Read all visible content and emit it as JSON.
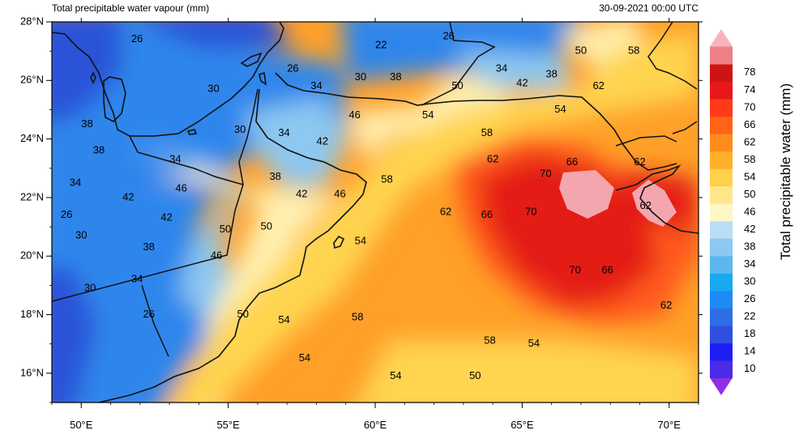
{
  "header": {
    "title": "Total precipitable water vapour (mm)",
    "datetime": "30-09-2021 00:00 UTC"
  },
  "map": {
    "lon_range": [
      49,
      71
    ],
    "lat_range": [
      15,
      28
    ],
    "x_ticks": [
      "50°E",
      "55°E",
      "60°E",
      "65°E",
      "70°E"
    ],
    "y_ticks": [
      "16°N",
      "18°N",
      "20°N",
      "22°N",
      "24°N",
      "26°N",
      "28°N"
    ],
    "contour_labels": [
      {
        "text": "26",
        "lon": 51.9,
        "lat": 27.4
      },
      {
        "text": "22",
        "lon": 60.2,
        "lat": 27.2
      },
      {
        "text": "26",
        "lon": 62.5,
        "lat": 27.5
      },
      {
        "text": "50",
        "lon": 67.0,
        "lat": 27.0
      },
      {
        "text": "58",
        "lon": 68.8,
        "lat": 27.0
      },
      {
        "text": "26",
        "lon": 57.2,
        "lat": 26.4
      },
      {
        "text": "30",
        "lon": 54.5,
        "lat": 25.7
      },
      {
        "text": "34",
        "lon": 58.0,
        "lat": 25.8
      },
      {
        "text": "30",
        "lon": 59.5,
        "lat": 26.1
      },
      {
        "text": "38",
        "lon": 60.7,
        "lat": 26.1
      },
      {
        "text": "50",
        "lon": 62.8,
        "lat": 25.8
      },
      {
        "text": "34",
        "lon": 64.3,
        "lat": 26.4
      },
      {
        "text": "42",
        "lon": 65.0,
        "lat": 25.9
      },
      {
        "text": "38",
        "lon": 66.0,
        "lat": 26.2
      },
      {
        "text": "62",
        "lon": 67.6,
        "lat": 25.8
      },
      {
        "text": "54",
        "lon": 66.3,
        "lat": 25.0
      },
      {
        "text": "46",
        "lon": 59.3,
        "lat": 24.8
      },
      {
        "text": "54",
        "lon": 61.8,
        "lat": 24.8
      },
      {
        "text": "38",
        "lon": 50.2,
        "lat": 24.5
      },
      {
        "text": "30",
        "lon": 55.4,
        "lat": 24.3
      },
      {
        "text": "34",
        "lon": 56.9,
        "lat": 24.2
      },
      {
        "text": "42",
        "lon": 58.2,
        "lat": 23.9
      },
      {
        "text": "58",
        "lon": 63.8,
        "lat": 24.2
      },
      {
        "text": "38",
        "lon": 50.6,
        "lat": 23.6
      },
      {
        "text": "34",
        "lon": 53.2,
        "lat": 23.3
      },
      {
        "text": "62",
        "lon": 64.0,
        "lat": 23.3
      },
      {
        "text": "66",
        "lon": 66.7,
        "lat": 23.2
      },
      {
        "text": "62",
        "lon": 69.0,
        "lat": 23.2
      },
      {
        "text": "38",
        "lon": 56.6,
        "lat": 22.7
      },
      {
        "text": "58",
        "lon": 60.4,
        "lat": 22.6
      },
      {
        "text": "70",
        "lon": 65.8,
        "lat": 22.8
      },
      {
        "text": "34",
        "lon": 49.8,
        "lat": 22.5
      },
      {
        "text": "46",
        "lon": 53.4,
        "lat": 22.3
      },
      {
        "text": "42",
        "lon": 57.5,
        "lat": 22.1
      },
      {
        "text": "46",
        "lon": 58.8,
        "lat": 22.1
      },
      {
        "text": "42",
        "lon": 51.6,
        "lat": 22.0
      },
      {
        "text": "26",
        "lon": 49.5,
        "lat": 21.4
      },
      {
        "text": "62",
        "lon": 62.4,
        "lat": 21.5
      },
      {
        "text": "66",
        "lon": 63.8,
        "lat": 21.4
      },
      {
        "text": "70",
        "lon": 65.3,
        "lat": 21.5
      },
      {
        "text": "62",
        "lon": 69.2,
        "lat": 21.7
      },
      {
        "text": "42",
        "lon": 52.9,
        "lat": 21.3
      },
      {
        "text": "50",
        "lon": 54.9,
        "lat": 20.9
      },
      {
        "text": "50",
        "lon": 56.3,
        "lat": 21.0
      },
      {
        "text": "30",
        "lon": 50.0,
        "lat": 20.7
      },
      {
        "text": "54",
        "lon": 59.5,
        "lat": 20.5
      },
      {
        "text": "38",
        "lon": 52.3,
        "lat": 20.3
      },
      {
        "text": "46",
        "lon": 54.6,
        "lat": 20.0
      },
      {
        "text": "30",
        "lon": 50.3,
        "lat": 18.9
      },
      {
        "text": "34",
        "lon": 51.9,
        "lat": 19.2
      },
      {
        "text": "70",
        "lon": 66.8,
        "lat": 19.5
      },
      {
        "text": "66",
        "lon": 67.9,
        "lat": 19.5
      },
      {
        "text": "26",
        "lon": 52.3,
        "lat": 18.0
      },
      {
        "text": "50",
        "lon": 55.5,
        "lat": 18.0
      },
      {
        "text": "54",
        "lon": 56.9,
        "lat": 17.8
      },
      {
        "text": "58",
        "lon": 59.4,
        "lat": 17.9
      },
      {
        "text": "62",
        "lon": 69.9,
        "lat": 18.3
      },
      {
        "text": "58",
        "lon": 63.9,
        "lat": 17.1
      },
      {
        "text": "54",
        "lon": 65.4,
        "lat": 17.0
      },
      {
        "text": "54",
        "lon": 57.6,
        "lat": 16.5
      },
      {
        "text": "54",
        "lon": 60.7,
        "lat": 15.9
      },
      {
        "text": "50",
        "lon": 63.4,
        "lat": 15.9
      }
    ]
  },
  "colorbar": {
    "title": "Total precipitable water (mm)",
    "levels": [
      "10",
      "14",
      "18",
      "22",
      "26",
      "30",
      "34",
      "38",
      "42",
      "46",
      "50",
      "54",
      "58",
      "62",
      "66",
      "70",
      "74",
      "78"
    ],
    "colors": [
      "#8f2fe6",
      "#4a2be8",
      "#1f1ff5",
      "#2f4fe0",
      "#2f6ee6",
      "#1d8af5",
      "#1aa8f0",
      "#5bb8ee",
      "#8cc8f0",
      "#b8ddf5",
      "#fff8c4",
      "#ffe68a",
      "#ffd04a",
      "#ffb02a",
      "#ff8c1a",
      "#ff6418",
      "#ff3a1a",
      "#e81818",
      "#cc1414",
      "#ef7f86",
      "#f8b4bc"
    ],
    "field_colors": {
      "deep_blue": "#2a52d8",
      "blue": "#2f86ec",
      "light_blue": "#8cc8f0",
      "pale_yellow": "#fff0b0",
      "yellow": "#ffd450",
      "orange": "#ffa028",
      "red_orange": "#ff5a1e",
      "red": "#e41a14",
      "pink": "#f4a6ae"
    }
  }
}
